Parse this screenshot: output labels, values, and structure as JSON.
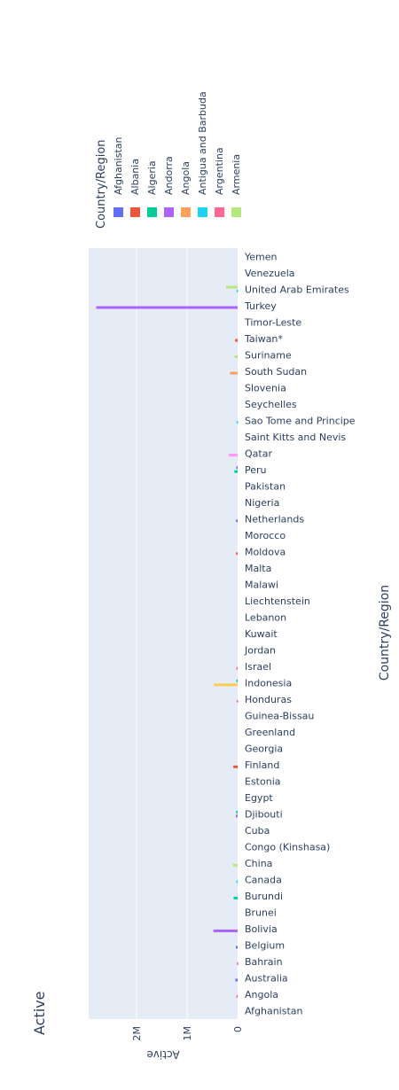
{
  "chart_data": {
    "type": "bar",
    "orientation": "horizontal",
    "title": "Active",
    "xlabel": "Active",
    "ylabel": "Country/Region",
    "xlim": [
      0,
      2950000
    ],
    "x_ticks": [
      {
        "value": 0,
        "label": "0"
      },
      {
        "value": 1000000,
        "label": "1M"
      },
      {
        "value": 2000000,
        "label": "2M"
      }
    ],
    "grid": true,
    "legend": {
      "title": "Country/Region",
      "placement": "top"
    },
    "categories": [
      "Afghanistan",
      "Angola",
      "Australia",
      "Bahrain",
      "Belgium",
      "Bolivia",
      "Brunei",
      "Burundi",
      "Canada",
      "China",
      "Congo (Kinshasa)",
      "Cuba",
      "Djibouti",
      "Egypt",
      "Estonia",
      "Finland",
      "Georgia",
      "Greenland",
      "Guinea-Bissau",
      "Honduras",
      "Indonesia",
      "Israel",
      "Jordan",
      "Kuwait",
      "Lebanon",
      "Liechtenstein",
      "Malawi",
      "Malta",
      "Moldova",
      "Morocco",
      "Netherlands",
      "Nigeria",
      "Pakistan",
      "Peru",
      "Qatar",
      "Saint Kitts and Nevis",
      "Sao Tome and Principe",
      "Seychelles",
      "Slovenia",
      "South Sudan",
      "Suriname",
      "Taiwan*",
      "Timor-Leste",
      "Turkey",
      "United Arab Emirates",
      "Venezuela",
      "Yemen"
    ],
    "series": [
      {
        "name": "Afghanistan",
        "color": "#636efa"
      },
      {
        "name": "Albania",
        "color": "#EF553B"
      },
      {
        "name": "Algeria",
        "color": "#00cc96"
      },
      {
        "name": "Andorra",
        "color": "#ab63fa"
      },
      {
        "name": "Angola",
        "color": "#FFA15A"
      },
      {
        "name": "Antigua and Barbuda",
        "color": "#19d3f3"
      },
      {
        "name": "Argentina",
        "color": "#FF6692"
      },
      {
        "name": "Armenia",
        "color": "#B6E880"
      }
    ],
    "bars": [
      {
        "y": 1.38,
        "value": 25000,
        "color": "#FF6692"
      },
      {
        "y": 2.38,
        "value": 45000,
        "color": "#636efa"
      },
      {
        "y": 3.38,
        "value": 12000,
        "color": "#FF6692"
      },
      {
        "y": 4.38,
        "value": 35000,
        "color": "#636efa"
      },
      {
        "y": 5.38,
        "value": 480000,
        "color": "#ab63fa"
      },
      {
        "y": 7.38,
        "value": 80000,
        "color": "#00cc96"
      },
      {
        "y": 8.38,
        "value": 25000,
        "color": "#19d3f3"
      },
      {
        "y": 9.38,
        "value": 90000,
        "color": "#B6E880"
      },
      {
        "y": 12.38,
        "value": 35000,
        "color": "#ab63fa"
      },
      {
        "y": 12.62,
        "value": 30000,
        "color": "#00cc96"
      },
      {
        "y": 15.38,
        "value": 85000,
        "color": "#EF553B"
      },
      {
        "y": 19.38,
        "value": 20000,
        "color": "#FF6692"
      },
      {
        "y": 20.38,
        "value": 470000,
        "color": "#FECB52"
      },
      {
        "y": 20.62,
        "value": 25000,
        "color": "#00cc96"
      },
      {
        "y": 21.38,
        "value": 25000,
        "color": "#FF6692"
      },
      {
        "y": 28.38,
        "value": 30000,
        "color": "#EF553B"
      },
      {
        "y": 30.38,
        "value": 30000,
        "color": "#636efa"
      },
      {
        "y": 33.38,
        "value": 65000,
        "color": "#00cc96"
      },
      {
        "y": 33.62,
        "value": 25000,
        "color": "#636efa"
      },
      {
        "y": 34.38,
        "value": 180000,
        "color": "#FF97FF"
      },
      {
        "y": 36.38,
        "value": 20000,
        "color": "#19d3f3"
      },
      {
        "y": 39.38,
        "value": 150000,
        "color": "#FFA15A"
      },
      {
        "y": 40.38,
        "value": 60000,
        "color": "#B6E880"
      },
      {
        "y": 41.38,
        "value": 50000,
        "color": "#EF553B"
      },
      {
        "y": 43.38,
        "value": 2800000,
        "color": "#ab63fa"
      },
      {
        "y": 44.38,
        "value": 20000,
        "color": "#19d3f3"
      },
      {
        "y": 44.62,
        "value": 230000,
        "color": "#B6E880"
      }
    ]
  }
}
